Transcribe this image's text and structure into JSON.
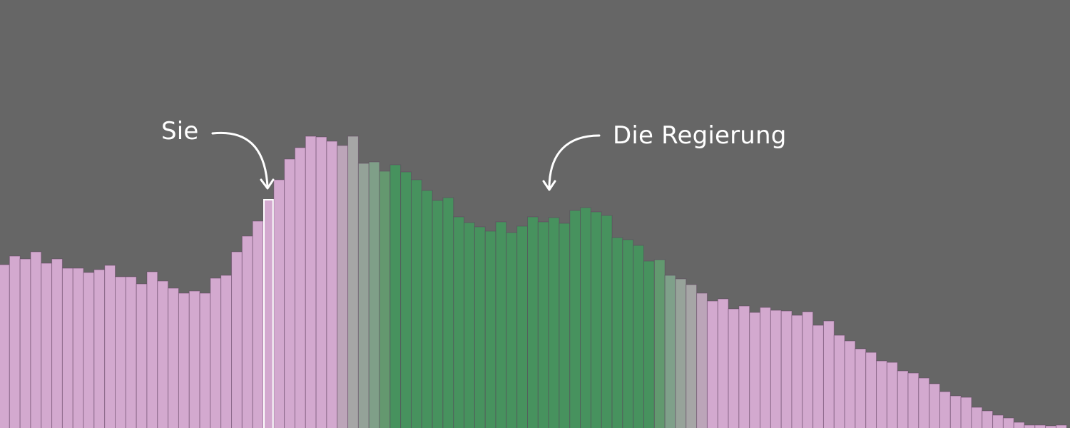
{
  "chart_data": {
    "type": "bar",
    "title": "",
    "xlabel": "",
    "ylabel": "",
    "ylim": [
      0,
      600
    ],
    "grid": false,
    "background": "#666666",
    "values": [
      229,
      241,
      237,
      247,
      231,
      237,
      224,
      224,
      218,
      222,
      228,
      212,
      212,
      202,
      219,
      206,
      196,
      189,
      192,
      189,
      210,
      214,
      247,
      269,
      290,
      320,
      348,
      377,
      393,
      409,
      408,
      402,
      396,
      409,
      371,
      373,
      360,
      369,
      359,
      348,
      333,
      319,
      323,
      296,
      288,
      282,
      276,
      289,
      274,
      283,
      296,
      289,
      295,
      287,
      305,
      309,
      303,
      298,
      267,
      264,
      256,
      234,
      236,
      214,
      209,
      201,
      189,
      178,
      181,
      167,
      171,
      162,
      169,
      165,
      164,
      158,
      163,
      144,
      150,
      130,
      122,
      111,
      106,
      94,
      92,
      80,
      77,
      70,
      62,
      51,
      45,
      43,
      29,
      24,
      18,
      14,
      8,
      4,
      4,
      3,
      4
    ],
    "highlighted_index": 25,
    "color_ranges": [
      {
        "from": 0,
        "to": 31,
        "color": "#d3a9cf"
      },
      {
        "from": 32,
        "to": 32,
        "color": "#bca5b9"
      },
      {
        "from": 33,
        "to": 33,
        "color": "#a6a6a6"
      },
      {
        "from": 34,
        "to": 34,
        "color": "#94a298"
      },
      {
        "from": 35,
        "to": 35,
        "color": "#7f9f88"
      },
      {
        "from": 36,
        "to": 36,
        "color": "#64986f"
      },
      {
        "from": 37,
        "to": 61,
        "color": "#47925e"
      },
      {
        "from": 62,
        "to": 62,
        "color": "#62996f"
      },
      {
        "from": 63,
        "to": 63,
        "color": "#7fa08a"
      },
      {
        "from": 64,
        "to": 64,
        "color": "#97a39a"
      },
      {
        "from": 65,
        "to": 65,
        "color": "#a6a6a6"
      },
      {
        "from": 66,
        "to": 66,
        "color": "#bca5b9"
      },
      {
        "from": 67,
        "to": 100,
        "color": "#d3a9cf"
      }
    ],
    "annotations": [
      {
        "text": "Sie",
        "target_index": 25
      },
      {
        "text": "Die Regierung",
        "target_index": 52
      }
    ]
  }
}
